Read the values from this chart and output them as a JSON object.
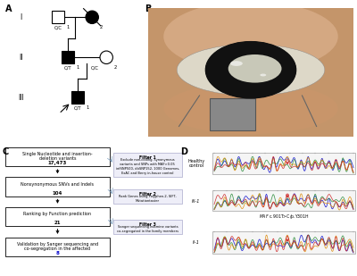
{
  "bg_color": "#ffffff",
  "panel_A_label": "A",
  "panel_B_label": "B",
  "panel_C_label": "C",
  "panel_D_label": "D",
  "gen_labels": [
    "I",
    "II",
    "III"
  ],
  "pedigree_labels": {
    "I1": "C/C",
    "I1_num": "1",
    "I2_num": "2",
    "II1": "C/T",
    "II1_num": "1",
    "II2": "C/C",
    "II2_num": "2",
    "III1": "C/T",
    "III1_num": "1"
  },
  "flowchart_boxes": [
    "Single Nucleotide and insertion-\ndeletion variants",
    "Nonsynonymous SNVs and Indels",
    "Ranking by Function prediction",
    "Validation by Sanger sequencing and\nco-segregation in the affected"
  ],
  "flowchart_nums": [
    "17,473",
    "104",
    "21",
    "8"
  ],
  "flowchart_num_colors": [
    "#000000",
    "#000000",
    "#000000",
    "#0000cc"
  ],
  "filter_titles": [
    "Filter 1",
    "Filter 2",
    "Filter 3"
  ],
  "filter_texts": [
    "Exclude non-coding, synonymous\nvariants and SNPs with MAF>0.05\ninfSNP500, dbSNP152, 1000 Genomes,\nExAC and Berry in-house control",
    "Rank Genes using Polyphen-2, SIFT,\nMutationtaster",
    "Sanger sequencing examine variants\nco-segregated in the family members"
  ],
  "mutation_label": "MAF c.901T>C/p.Y301H",
  "track_labels": [
    "Healthy\ncontrol",
    "III-1",
    "II-1"
  ],
  "chrom_colors": [
    "#0000cc",
    "#228833",
    "#dd8800",
    "#cc2222"
  ],
  "highlight_color": "#cc2222"
}
